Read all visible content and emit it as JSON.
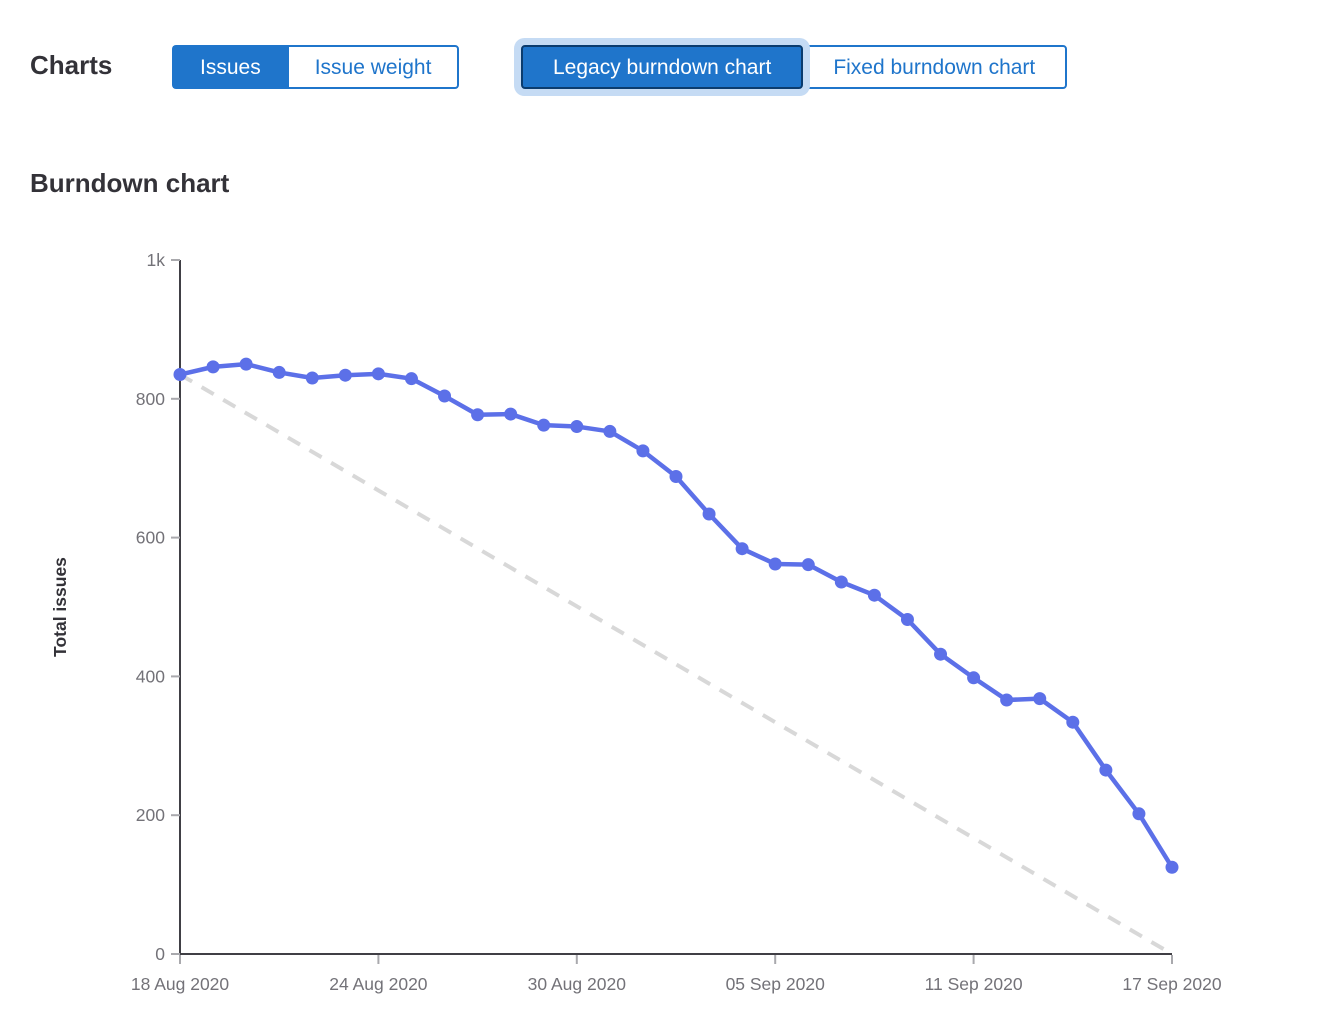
{
  "header": {
    "charts_label": "Charts",
    "toggle_groups": [
      {
        "name": "metric",
        "buttons": [
          {
            "label": "Issues",
            "selected": true
          },
          {
            "label": "Issue weight",
            "selected": false
          }
        ]
      },
      {
        "name": "chart-type",
        "buttons": [
          {
            "label": "Legacy burndown chart",
            "selected": true,
            "focused": true
          },
          {
            "label": "Fixed burndown chart",
            "selected": false
          }
        ]
      }
    ]
  },
  "section_title": "Burndown chart",
  "colors": {
    "heading": "#333238",
    "selected_bg": "#1f75cb",
    "selected_border": "#0b3c6e",
    "focus_ring": "#c5dbf4",
    "line": "#5c70e8",
    "guideline": "#d8d8d8",
    "axis": "#403f45",
    "tick": "#a9a9ad",
    "tick_label": "#737278"
  },
  "chart_data": {
    "type": "line",
    "title": "Burndown chart",
    "xlabel": "",
    "ylabel": "Total issues",
    "ylim": [
      0,
      1000
    ],
    "x_range_days": [
      0,
      30
    ],
    "grid": false,
    "legend_position": "none",
    "yticks": [
      {
        "value": 0,
        "label": "0"
      },
      {
        "value": 200,
        "label": "200"
      },
      {
        "value": 400,
        "label": "400"
      },
      {
        "value": 600,
        "label": "600"
      },
      {
        "value": 800,
        "label": "800"
      },
      {
        "value": 1000,
        "label": "1k"
      }
    ],
    "xticks": [
      {
        "day": 0,
        "label": "18 Aug 2020"
      },
      {
        "day": 6,
        "label": "24 Aug 2020"
      },
      {
        "day": 12,
        "label": "30 Aug 2020"
      },
      {
        "day": 18,
        "label": "05 Sep 2020"
      },
      {
        "day": 24,
        "label": "11 Sep 2020"
      },
      {
        "day": 30,
        "label": "17 Sep 2020"
      }
    ],
    "series": [
      {
        "name": "Open issues",
        "style": "solid-with-points",
        "color": "#5c70e8",
        "x_start_day": 0,
        "values": [
          835,
          846,
          850,
          838,
          830,
          834,
          836,
          829,
          804,
          777,
          778,
          762,
          760,
          753,
          725,
          688,
          634,
          584,
          562,
          561,
          536,
          517,
          482,
          432,
          398,
          366,
          368,
          334,
          265,
          202,
          125
        ]
      },
      {
        "name": "Guideline",
        "style": "dashed",
        "color": "#d8d8d8",
        "points": [
          [
            0,
            835
          ],
          [
            30,
            0
          ]
        ]
      }
    ]
  }
}
